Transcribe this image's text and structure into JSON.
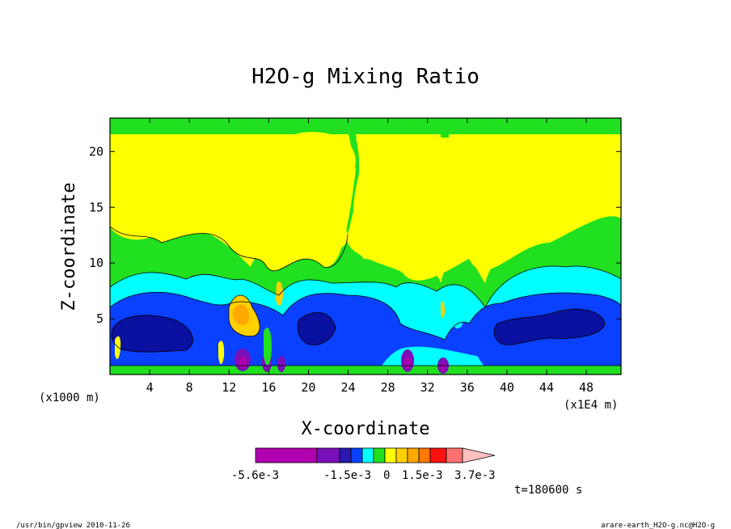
{
  "chart_data": {
    "type": "contour",
    "title": "H2O-g Mixing Ratio",
    "xlabel": "X-coordinate",
    "ylabel": "Z-coordinate",
    "x_unit_left": "(x1000 m)",
    "x_unit_right": "(x1E4 m)",
    "xlim": [
      0,
      51.5
    ],
    "ylim": [
      0,
      23
    ],
    "x_ticks": [
      4,
      8,
      12,
      16,
      20,
      24,
      28,
      32,
      36,
      40,
      44,
      48
    ],
    "y_ticks": [
      5,
      10,
      15,
      20
    ],
    "colorbar": {
      "labels": [
        "-5.6e-3",
        "-1.5e-3",
        "0",
        "1.5e-3",
        "3.7e-3"
      ],
      "colors": [
        "#b000b0",
        "#7a10b8",
        "#2a18b0",
        "#0a40ff",
        "#00ffff",
        "#20e020",
        "#ffff00",
        "#ffd000",
        "#ffa800",
        "#ff7800",
        "#ff1010",
        "#ff7070",
        "#ffc0c0"
      ]
    },
    "time_label": "t=180600 s",
    "colors": {
      "upper": "#ffff00",
      "mid": "#20e020",
      "cyan": "#00ffff",
      "blue": "#0a40ff",
      "dark_blue": "#0a10a0",
      "purple": "#7a10b8",
      "magenta": "#b000b0",
      "orange": "#ffa800"
    }
  },
  "footer": {
    "left": "/usr/bin/gpview  2010-11-26",
    "right": "arare-earth_H2O-g.nc@H2O-g"
  }
}
